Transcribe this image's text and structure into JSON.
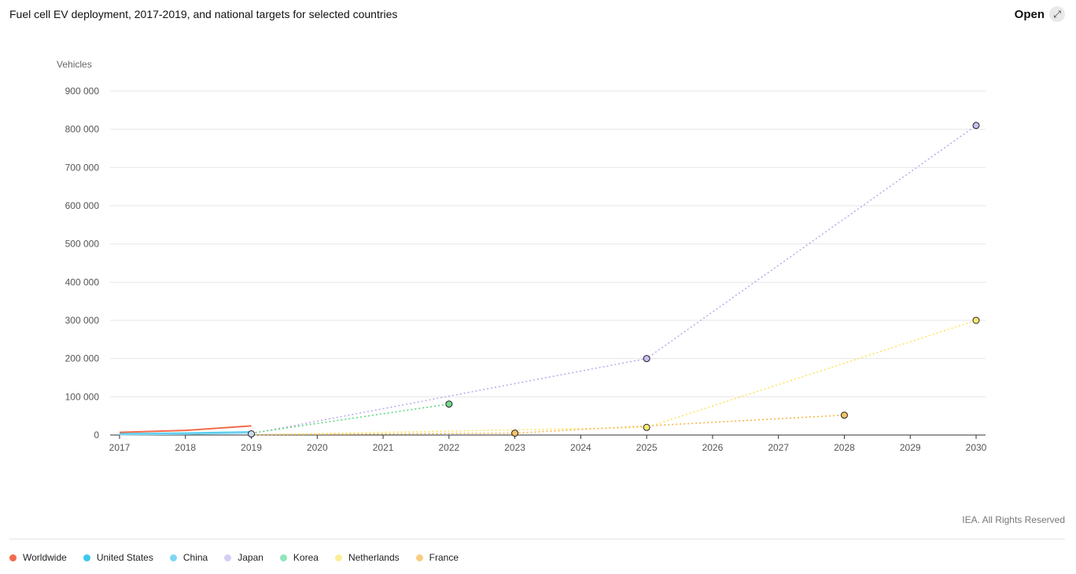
{
  "header": {
    "title": "Fuel cell EV deployment, 2017-2019, and national targets for selected countries",
    "open_label": "Open",
    "open_icon": "expand-icon"
  },
  "footer": {
    "credit": "IEA. All Rights Reserved"
  },
  "chart_data": {
    "type": "line",
    "title": "Fuel cell EV deployment, 2017-2019, and national targets for selected countries",
    "ylabel": "Vehicles",
    "xlabel": "",
    "xlim": [
      2017,
      2030
    ],
    "ylim": [
      0,
      900000
    ],
    "x_ticks": [
      "2017",
      "2018",
      "2019",
      "2020",
      "2021",
      "2022",
      "2023",
      "2024",
      "2025",
      "2026",
      "2027",
      "2028",
      "2029",
      "2030"
    ],
    "y_ticks": [
      "0",
      "100 000",
      "200 000",
      "300 000",
      "400 000",
      "500 000",
      "600 000",
      "700 000",
      "800 000",
      "900 000"
    ],
    "grid": true,
    "legend_position": "bottom-left",
    "series": [
      {
        "name": "Worldwide",
        "color": "#f26b4a",
        "actual": [
          [
            2017,
            7000
          ],
          [
            2018,
            12000
          ],
          [
            2019,
            24000
          ]
        ],
        "target": []
      },
      {
        "name": "United States",
        "color": "#3bc8ee",
        "actual": [
          [
            2017,
            3000
          ],
          [
            2018,
            5000
          ],
          [
            2019,
            8000
          ]
        ],
        "target": []
      },
      {
        "name": "China",
        "color": "#7fd6f2",
        "actual": [
          [
            2017,
            1000
          ],
          [
            2018,
            2500
          ],
          [
            2019,
            6000
          ]
        ],
        "target": []
      },
      {
        "name": "Japan",
        "color": "#d6cdf2",
        "actual": [
          [
            2019,
            3500
          ]
        ],
        "target": [
          [
            2019,
            3500
          ],
          [
            2025,
            200000
          ],
          [
            2030,
            810000
          ]
        ],
        "target_markers": [
          [
            2025,
            200000
          ],
          [
            2030,
            810000
          ]
        ],
        "target_color": "#b8a9ea",
        "marker_fill": "#cbbdf0"
      },
      {
        "name": "Korea",
        "color": "#8fe6b8",
        "actual": [
          [
            2019,
            5000
          ]
        ],
        "target": [
          [
            2019,
            5000
          ],
          [
            2022,
            81000
          ]
        ],
        "target_markers": [
          [
            2022,
            81000
          ]
        ],
        "target_color": "#55d67a",
        "marker_fill": "#6edc8c"
      },
      {
        "name": "Netherlands",
        "color": "#fcee9a",
        "actual": [
          [
            2019,
            500
          ]
        ],
        "target": [
          [
            2019,
            500
          ],
          [
            2025,
            20000
          ],
          [
            2030,
            300000
          ]
        ],
        "target_markers": [
          [
            2025,
            20000
          ],
          [
            2030,
            300000
          ]
        ],
        "target_color": "#fde35a",
        "marker_fill": "#fbe870"
      },
      {
        "name": "France",
        "color": "#f9cc82",
        "actual": [
          [
            2019,
            500
          ]
        ],
        "target": [
          [
            2019,
            500
          ],
          [
            2023,
            5000
          ],
          [
            2028,
            52000
          ]
        ],
        "target_markers": [
          [
            2023,
            5000
          ],
          [
            2028,
            52000
          ]
        ],
        "target_color": "#f5b340",
        "marker_fill": "#f7c266"
      }
    ]
  }
}
